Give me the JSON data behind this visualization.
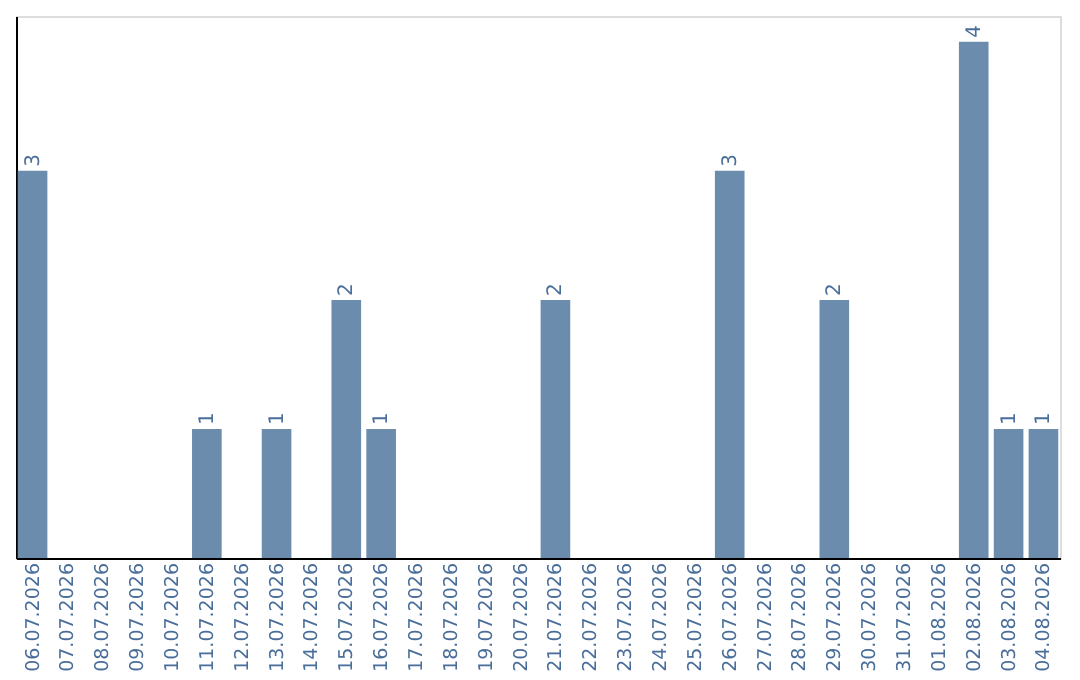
{
  "chart_data": {
    "type": "bar",
    "categories": [
      "06.07.2026",
      "07.07.2026",
      "08.07.2026",
      "09.07.2026",
      "10.07.2026",
      "11.07.2026",
      "12.07.2026",
      "13.07.2026",
      "14.07.2026",
      "15.07.2026",
      "16.07.2026",
      "17.07.2026",
      "18.07.2026",
      "19.07.2026",
      "20.07.2026",
      "21.07.2026",
      "22.07.2026",
      "23.07.2026",
      "24.07.2026",
      "25.07.2026",
      "26.07.2026",
      "27.07.2026",
      "28.07.2026",
      "29.07.2026",
      "30.07.2026",
      "31.07.2026",
      "01.08.2026",
      "02.08.2026",
      "03.08.2026",
      "04.08.2026"
    ],
    "values": [
      3,
      0,
      0,
      0,
      0,
      1,
      0,
      1,
      0,
      2,
      1,
      0,
      0,
      0,
      0,
      2,
      0,
      0,
      0,
      0,
      3,
      0,
      0,
      2,
      0,
      0,
      0,
      4,
      1,
      1
    ],
    "value_labels": [
      "3",
      null,
      null,
      null,
      null,
      "1",
      null,
      "1",
      null,
      "2",
      "1",
      null,
      null,
      null,
      null,
      "2",
      null,
      null,
      null,
      null,
      "3",
      null,
      null,
      "2",
      null,
      null,
      null,
      "4",
      "1",
      "1"
    ],
    "color": "#6b8cad",
    "ylim": [
      0,
      4.2
    ],
    "grid": false,
    "tick_labels": "x"
  }
}
